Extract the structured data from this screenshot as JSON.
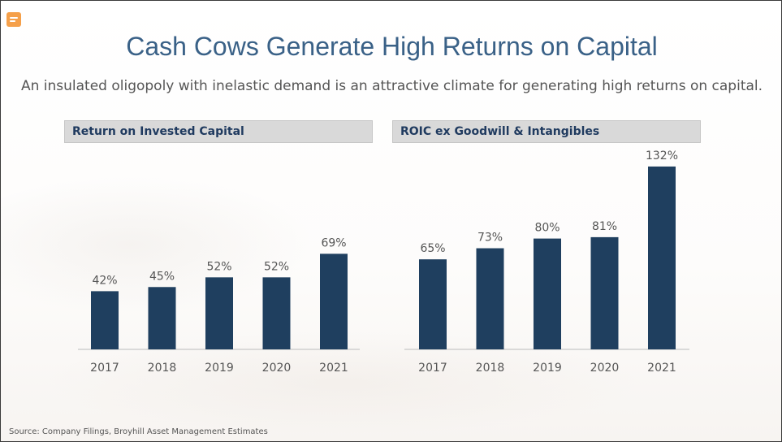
{
  "slide": {
    "title": "Cash Cows Generate High Returns on Capital",
    "subtitle": "An insulated oligopoly with inelastic demand is an attractive climate for generating high returns on capital.",
    "source": "Source: Company Filings, Broyhill Asset Management Estimates",
    "comment_icon": "comment-icon"
  },
  "colors": {
    "bar": "#1f3f5f",
    "title": "#3a6187",
    "header_bg": "#d9d9d9",
    "axis": "#cfcfcf"
  },
  "chart_data": [
    {
      "type": "bar",
      "title": "Return on Invested Capital",
      "categories": [
        "2017",
        "2018",
        "2019",
        "2020",
        "2021"
      ],
      "values": [
        42,
        45,
        52,
        52,
        69
      ],
      "data_labels": [
        "42%",
        "45%",
        "52%",
        "52%",
        "69%"
      ],
      "ylim": [
        0,
        140
      ]
    },
    {
      "type": "bar",
      "title": "ROIC ex Goodwill & Intangibles",
      "categories": [
        "2017",
        "2018",
        "2019",
        "2020",
        "2021"
      ],
      "values": [
        65,
        73,
        80,
        81,
        132
      ],
      "data_labels": [
        "65%",
        "73%",
        "80%",
        "81%",
        "132%"
      ],
      "ylim": [
        0,
        140
      ]
    }
  ]
}
